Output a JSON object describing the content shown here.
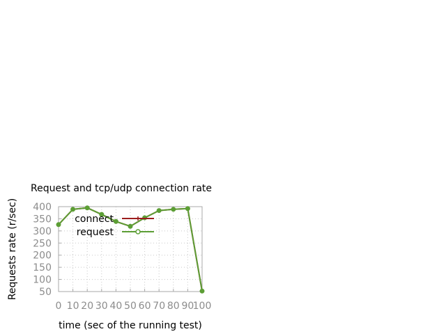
{
  "chart_data": {
    "type": "line",
    "title": "Request and tcp/udp connection rate",
    "xlabel": "time (sec of the running test)",
    "ylabel": "Requests rate (r/sec)",
    "xlim": [
      0,
      100
    ],
    "ylim": [
      50,
      400
    ],
    "xticks": [
      0,
      10,
      20,
      30,
      40,
      50,
      60,
      70,
      80,
      90,
      100
    ],
    "yticks": [
      50,
      100,
      150,
      200,
      250,
      300,
      350,
      400
    ],
    "grid": true,
    "legend_position": "inside-top",
    "series": [
      {
        "name": "connect",
        "color": "#9b1d1d",
        "marker": "plus",
        "x": [
          0,
          10,
          20,
          30,
          40,
          50,
          60,
          70,
          80,
          90,
          100
        ],
        "y": [
          326,
          389,
          395,
          368,
          339,
          319,
          354,
          384,
          389,
          392,
          52
        ]
      },
      {
        "name": "request",
        "color": "#5c9e35",
        "marker": "circle",
        "x": [
          0,
          10,
          20,
          30,
          40,
          50,
          60,
          70,
          80,
          90,
          100
        ],
        "y": [
          326,
          389,
          395,
          368,
          339,
          319,
          354,
          384,
          389,
          392,
          52
        ]
      }
    ]
  }
}
